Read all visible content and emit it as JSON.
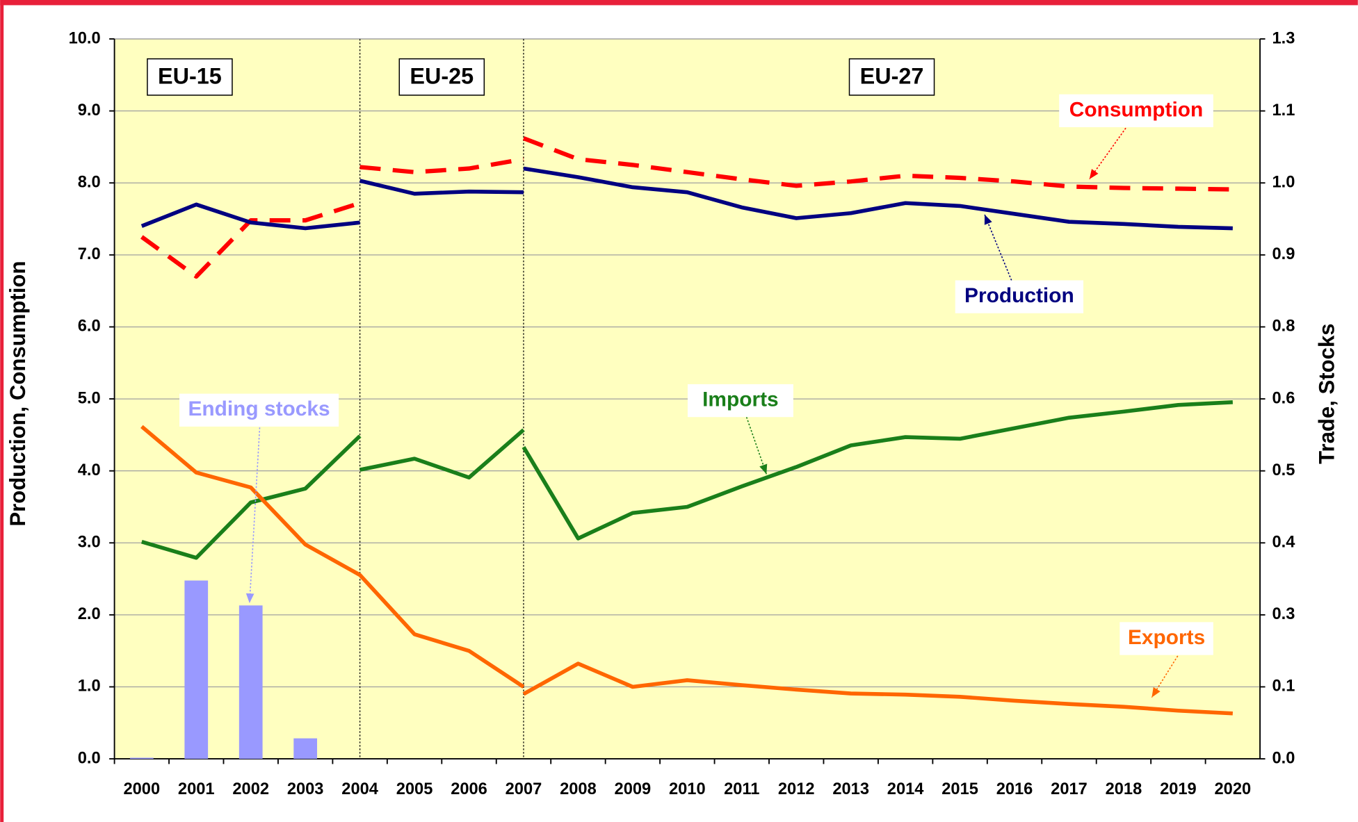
{
  "chart_data": {
    "type": "line",
    "ylabel": "Production, Consumption",
    "y2label": "Trade, Stocks",
    "xlim": [
      1999.5,
      2020.5
    ],
    "xticks": [
      2000,
      2001,
      2002,
      2003,
      2004,
      2005,
      2006,
      2007,
      2008,
      2009,
      2010,
      2011,
      2012,
      2013,
      2014,
      2015,
      2016,
      2017,
      2018,
      2019,
      2020
    ],
    "ylim": [
      0,
      10
    ],
    "yticks": [
      {
        "value": 0,
        "label": "0.0"
      },
      {
        "value": 1,
        "label": "1.0"
      },
      {
        "value": 2,
        "label": "2.0"
      },
      {
        "value": 3,
        "label": "3.0"
      },
      {
        "value": 4,
        "label": "4.0"
      },
      {
        "value": 5,
        "label": "5.0"
      },
      {
        "value": 6,
        "label": "6.0"
      },
      {
        "value": 7,
        "label": "7.0"
      },
      {
        "value": 8,
        "label": "8.0"
      },
      {
        "value": 9,
        "label": "9.0"
      },
      {
        "value": 10,
        "label": "10.0"
      }
    ],
    "y2lim": [
      0,
      1.3
    ],
    "y2ticks": [
      {
        "value": 0,
        "label": "0.0"
      },
      {
        "value": 0.13,
        "label": "0.1"
      },
      {
        "value": 0.26,
        "label": "0.3"
      },
      {
        "value": 0.39,
        "label": "0.4"
      },
      {
        "value": 0.52,
        "label": "0.5"
      },
      {
        "value": 0.65,
        "label": "0.6"
      },
      {
        "value": 0.78,
        "label": "0.8"
      },
      {
        "value": 0.91,
        "label": "0.9"
      },
      {
        "value": 1.04,
        "label": "1.0"
      },
      {
        "value": 1.17,
        "label": "1.1"
      },
      {
        "value": 1.3,
        "label": "1.3"
      }
    ],
    "grid": true,
    "regions": [
      "EU-15",
      "EU-25",
      "EU-27"
    ],
    "dividers": [
      2004,
      2007
    ],
    "series": [
      {
        "name": "Consumption",
        "color": "#ff0000",
        "dashed": true,
        "x": [
          2000,
          2001,
          2002,
          2003,
          2004,
          null,
          2004,
          2005,
          2006,
          2007,
          null,
          2007,
          2008,
          2009,
          2010,
          2011,
          2012,
          2013,
          2014,
          2015,
          2016,
          2017,
          2018,
          2019,
          2020
        ],
        "values": [
          7.25,
          6.7,
          7.48,
          7.48,
          7.72,
          null,
          8.22,
          8.15,
          8.2,
          8.33,
          null,
          8.62,
          8.33,
          8.25,
          8.15,
          8.05,
          7.96,
          8.02,
          8.1,
          8.07,
          8.02,
          7.95,
          7.93,
          7.92,
          7.91
        ]
      },
      {
        "name": "Production",
        "color": "#000080",
        "x": [
          2000,
          2001,
          2002,
          2003,
          2004,
          null,
          2004,
          2005,
          2006,
          2007,
          null,
          2007,
          2008,
          2009,
          2010,
          2011,
          2012,
          2013,
          2014,
          2015,
          2016,
          2017,
          2018,
          2019,
          2020
        ],
        "values": [
          7.4,
          7.7,
          7.45,
          7.37,
          7.45,
          null,
          8.03,
          7.85,
          7.88,
          7.87,
          null,
          8.2,
          8.08,
          7.94,
          7.87,
          7.66,
          7.51,
          7.58,
          7.72,
          7.68,
          7.57,
          7.46,
          7.43,
          7.39,
          7.37
        ]
      },
      {
        "name": "Imports",
        "color": "#1a7f1a",
        "axis": "y2",
        "x": [
          2000,
          2001,
          2002,
          2003,
          2004,
          null,
          2004,
          2005,
          2006,
          2007,
          null,
          2007,
          2008,
          2009,
          2010,
          2011,
          2012,
          2013,
          2014,
          2015,
          2016,
          2017,
          2018,
          2019,
          2020
        ],
        "values": [
          0.392,
          0.363,
          0.463,
          0.488,
          0.583,
          null,
          0.522,
          0.542,
          0.508,
          0.594,
          null,
          0.563,
          0.398,
          0.444,
          0.455,
          0.492,
          0.527,
          0.566,
          0.581,
          0.578,
          0.597,
          0.616,
          0.627,
          0.639,
          0.644
        ]
      },
      {
        "name": "Exports",
        "color": "#ff6600",
        "axis": "y2",
        "x": [
          2000,
          2001,
          2002,
          2003,
          2004,
          2005,
          2006,
          2007,
          null,
          2007,
          2008,
          2009,
          2010,
          2011,
          2012,
          2013,
          2014,
          2015,
          2016,
          2017,
          2018,
          2019,
          2020
        ],
        "values": [
          0.6,
          0.517,
          0.49,
          0.387,
          0.332,
          0.225,
          0.195,
          0.13,
          null,
          0.117,
          0.172,
          0.13,
          0.142,
          0.133,
          0.125,
          0.118,
          0.116,
          0.112,
          0.105,
          0.099,
          0.094,
          0.087,
          0.082
        ]
      },
      {
        "name": "Ending stocks",
        "color": "#9999ff",
        "axis": "y2",
        "type": "bar",
        "x": [
          2000,
          2001,
          2002,
          2003
        ],
        "values": [
          0.002,
          0.322,
          0.277,
          0.037
        ]
      }
    ]
  }
}
